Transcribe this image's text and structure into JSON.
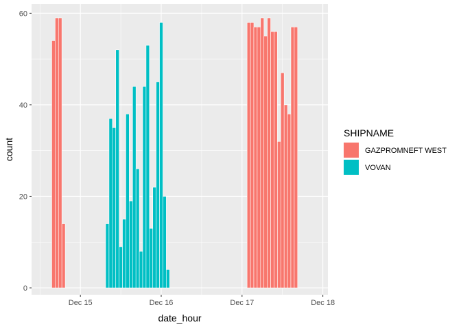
{
  "chart_data": {
    "type": "bar",
    "title": "",
    "xlabel": "date_hour",
    "ylabel": "count",
    "ylim": [
      0,
      62
    ],
    "yticks": [
      0,
      20,
      40,
      60
    ],
    "x_unit": "hour",
    "xlim": [
      "2016-12-14T09:30",
      "2016-12-18T01:30"
    ],
    "xticks": [
      {
        "value": "2016-12-15T00:00",
        "label": "Dec 15"
      },
      {
        "value": "2016-12-16T00:00",
        "label": "Dec 16"
      },
      {
        "value": "2016-12-17T00:00",
        "label": "Dec 17"
      },
      {
        "value": "2016-12-18T00:00",
        "label": "Dec 18"
      }
    ],
    "grid": true,
    "legend": {
      "title": "SHIPNAME",
      "position": "right"
    },
    "series": [
      {
        "name": "GAZPROMNEFT WEST",
        "color": "#F8766D",
        "points": [
          {
            "x": "2016-12-14T16:00",
            "y": 54
          },
          {
            "x": "2016-12-14T17:00",
            "y": 59
          },
          {
            "x": "2016-12-14T18:00",
            "y": 59
          },
          {
            "x": "2016-12-14T19:00",
            "y": 14
          },
          {
            "x": "2016-12-17T02:00",
            "y": 58
          },
          {
            "x": "2016-12-17T03:00",
            "y": 58
          },
          {
            "x": "2016-12-17T04:00",
            "y": 57
          },
          {
            "x": "2016-12-17T05:00",
            "y": 57
          },
          {
            "x": "2016-12-17T06:00",
            "y": 59
          },
          {
            "x": "2016-12-17T07:00",
            "y": 55
          },
          {
            "x": "2016-12-17T08:00",
            "y": 59
          },
          {
            "x": "2016-12-17T09:00",
            "y": 56
          },
          {
            "x": "2016-12-17T10:00",
            "y": 56
          },
          {
            "x": "2016-12-17T11:00",
            "y": 32
          },
          {
            "x": "2016-12-17T12:00",
            "y": 47
          },
          {
            "x": "2016-12-17T13:00",
            "y": 40
          },
          {
            "x": "2016-12-17T14:00",
            "y": 38
          },
          {
            "x": "2016-12-17T15:00",
            "y": 57
          },
          {
            "x": "2016-12-17T16:00",
            "y": 57
          }
        ]
      },
      {
        "name": "VOVAN",
        "color": "#00BFC4",
        "points": [
          {
            "x": "2016-12-15T08:00",
            "y": 14
          },
          {
            "x": "2016-12-15T09:00",
            "y": 37
          },
          {
            "x": "2016-12-15T10:00",
            "y": 35
          },
          {
            "x": "2016-12-15T11:00",
            "y": 52
          },
          {
            "x": "2016-12-15T12:00",
            "y": 9
          },
          {
            "x": "2016-12-15T13:00",
            "y": 15
          },
          {
            "x": "2016-12-15T14:00",
            "y": 38
          },
          {
            "x": "2016-12-15T15:00",
            "y": 19
          },
          {
            "x": "2016-12-15T16:00",
            "y": 44
          },
          {
            "x": "2016-12-15T17:00",
            "y": 26
          },
          {
            "x": "2016-12-15T18:00",
            "y": 8
          },
          {
            "x": "2016-12-15T19:00",
            "y": 44
          },
          {
            "x": "2016-12-15T20:00",
            "y": 53
          },
          {
            "x": "2016-12-15T21:00",
            "y": 13
          },
          {
            "x": "2016-12-15T22:00",
            "y": 22
          },
          {
            "x": "2016-12-15T23:00",
            "y": 45
          },
          {
            "x": "2016-12-16T00:00",
            "y": 58
          },
          {
            "x": "2016-12-16T01:00",
            "y": 20
          },
          {
            "x": "2016-12-16T02:00",
            "y": 4
          }
        ]
      }
    ]
  }
}
